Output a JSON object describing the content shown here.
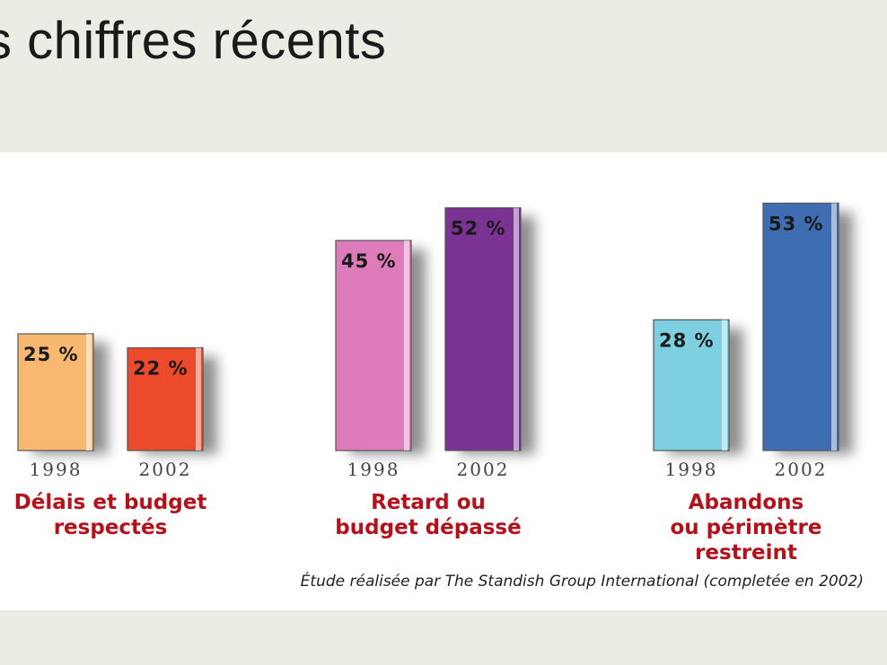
{
  "slide": {
    "title": "s chiffres récents"
  },
  "chart_data": {
    "type": "bar",
    "groups": [
      {
        "label_lines": [
          "Délais et budget",
          "respectés"
        ],
        "bars": [
          {
            "year": "1998",
            "value": 25,
            "label": "25 %",
            "color": "#f9b870"
          },
          {
            "year": "2002",
            "value": 22,
            "label": "22 %",
            "color": "#ec4a2a"
          }
        ]
      },
      {
        "label_lines": [
          "Retard ou",
          "budget dépassé"
        ],
        "bars": [
          {
            "year": "1998",
            "value": 45,
            "label": "45 %",
            "color": "#dd7bbb"
          },
          {
            "year": "2002",
            "value": 52,
            "label": "52 %",
            "color": "#7a3293"
          }
        ]
      },
      {
        "label_lines": [
          "Abandons",
          "ou périmètre",
          "restreint"
        ],
        "bars": [
          {
            "year": "1998",
            "value": 28,
            "label": "28 %",
            "color": "#7ecfe0"
          },
          {
            "year": "2002",
            "value": 53,
            "label": "53 %",
            "color": "#3f6db1"
          }
        ]
      }
    ],
    "ylim": [
      0,
      53
    ],
    "source": "Étude réalisée par The Standish Group International (completée en 2002)"
  }
}
